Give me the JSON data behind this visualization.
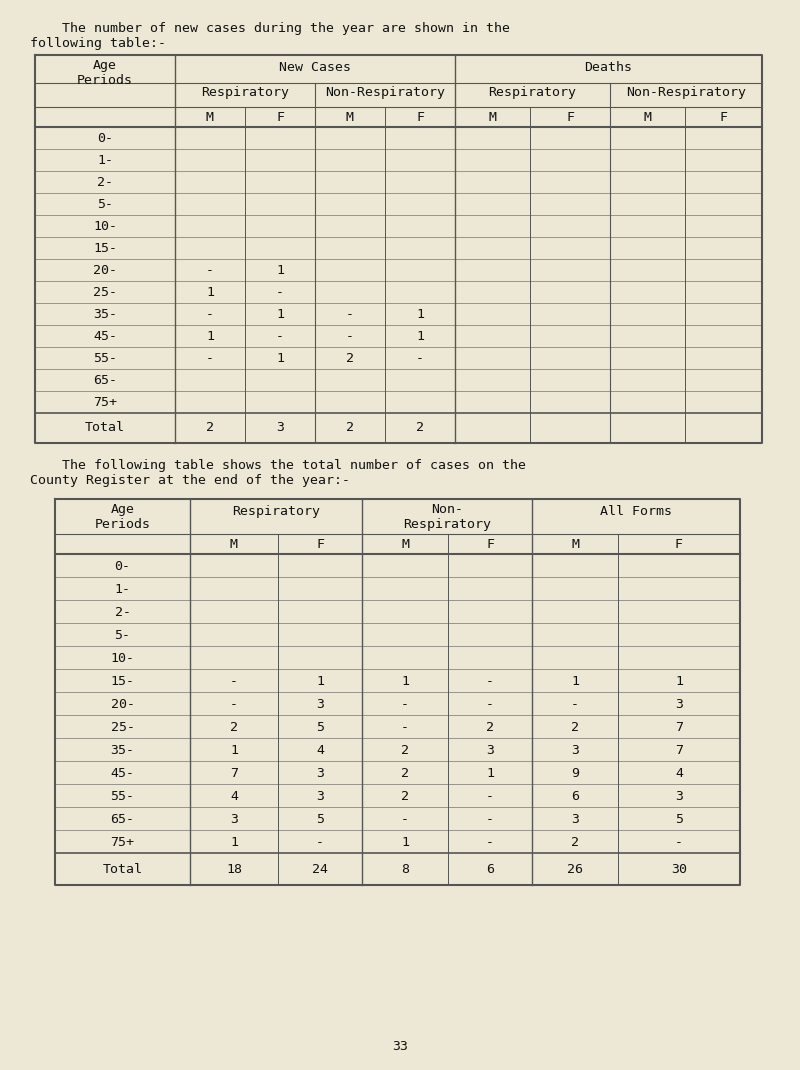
{
  "bg_color": "#ede8d5",
  "text_color": "#111111",
  "intro_text1": "    The number of new cases during the year are shown in the",
  "intro_text2": "following table:-",
  "table1": {
    "age_periods": [
      "0-",
      "1-",
      "2-",
      "5-",
      "10-",
      "15-",
      "20-",
      "25-",
      "35-",
      "45-",
      "55-",
      "65-",
      "75+"
    ],
    "resp_new_M": [
      "",
      "",
      "",
      "",
      "",
      "",
      "-",
      "1",
      "-",
      "1",
      "-",
      "",
      ""
    ],
    "resp_new_F": [
      "",
      "",
      "",
      "",
      "",
      "",
      "1",
      "-",
      "1",
      "-",
      "1",
      "",
      ""
    ],
    "nonresp_new_M": [
      "",
      "",
      "",
      "",
      "",
      "",
      "",
      "",
      "-",
      "-",
      "2",
      "",
      ""
    ],
    "nonresp_new_F": [
      "",
      "",
      "",
      "",
      "",
      "",
      "",
      "",
      "1",
      "1",
      "-",
      "",
      ""
    ],
    "total_resp_new_M": "2",
    "total_resp_new_F": "3",
    "total_nonresp_new_M": "2",
    "total_nonresp_new_F": "2"
  },
  "intro_text3": "    The following table shows the total number of cases on the",
  "intro_text4": "County Register at the end of the year:-",
  "table2": {
    "age_periods": [
      "0-",
      "1-",
      "2-",
      "5-",
      "10-",
      "15-",
      "20-",
      "25-",
      "35-",
      "45-",
      "55-",
      "65-",
      "75+"
    ],
    "resp_M": [
      "",
      "",
      "",
      "",
      "",
      "-",
      "-",
      "2",
      "1",
      "7",
      "4",
      "3",
      "1"
    ],
    "resp_F": [
      "",
      "",
      "",
      "",
      "",
      "1",
      "3",
      "5",
      "4",
      "3",
      "3",
      "5",
      "-"
    ],
    "nonresp_M": [
      "",
      "",
      "",
      "",
      "",
      "1",
      "-",
      "-",
      "2",
      "2",
      "2",
      "-",
      "1"
    ],
    "nonresp_F": [
      "",
      "",
      "",
      "",
      "",
      "-",
      "-",
      "2",
      "3",
      "1",
      "-",
      "-",
      "-"
    ],
    "all_M": [
      "",
      "",
      "",
      "",
      "",
      "1",
      "-",
      "2",
      "3",
      "9",
      "6",
      "3",
      "2"
    ],
    "all_F": [
      "",
      "",
      "",
      "",
      "",
      "1",
      "3",
      "7",
      "7",
      "4",
      "3",
      "5",
      "-"
    ],
    "total_resp_M": "18",
    "total_resp_F": "24",
    "total_nonresp_M": "8",
    "total_nonresp_F": "6",
    "total_all_M": "26",
    "total_all_F": "30"
  },
  "page_number": "33",
  "line_color": "#555555",
  "font_size": 9.5
}
